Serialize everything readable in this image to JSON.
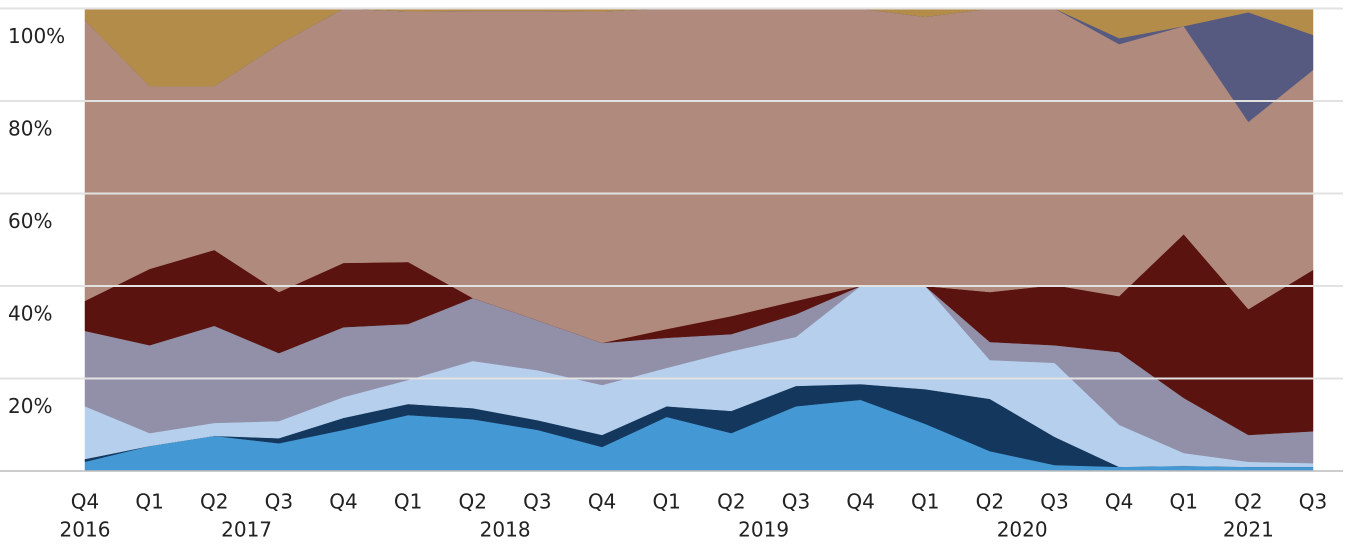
{
  "chart_data": {
    "type": "stacked_area",
    "categories": [
      "Q4",
      "Q1",
      "Q2",
      "Q3",
      "Q4",
      "Q1",
      "Q2",
      "Q3",
      "Q4",
      "Q1",
      "Q2",
      "Q3",
      "Q4",
      "Q1",
      "Q2",
      "Q3",
      "Q4",
      "Q1",
      "Q2",
      "Q3"
    ],
    "years": [
      "2016",
      "2017",
      "2017",
      "2017",
      "2017",
      "2018",
      "2018",
      "2018",
      "2018",
      "2019",
      "2019",
      "2019",
      "2019",
      "2020",
      "2020",
      "2020",
      "2020",
      "2021",
      "2021",
      "2021"
    ],
    "ylim": [
      0,
      100
    ],
    "yticks": [
      {
        "value": 20,
        "label": "20%"
      },
      {
        "value": 40,
        "label": "40%"
      },
      {
        "value": 60,
        "label": "60%"
      },
      {
        "value": 80,
        "label": "80%"
      },
      {
        "value": 100,
        "label": "100%"
      }
    ],
    "grid": true,
    "series": [
      {
        "color": "#4499d4",
        "values": [
          2,
          5.4,
          7.6,
          6,
          8.9,
          12.1,
          11.2,
          8.9,
          5.2,
          11.7,
          8.2,
          14,
          15.4,
          10.2,
          4.3,
          1.3,
          0.9,
          1.1,
          0.9,
          0.9
        ]
      },
      {
        "color": "#14375e",
        "values": [
          0.6,
          0,
          0,
          1.1,
          2.6,
          2.4,
          2.4,
          2.1,
          2.6,
          2.3,
          4.8,
          4.4,
          3.4,
          7.5,
          11.3,
          6.1,
          0,
          0,
          0,
          0
        ]
      },
      {
        "color": "#b5cfec",
        "values": [
          11.4,
          2.8,
          2.8,
          3.7,
          4.5,
          5.2,
          10.2,
          10.8,
          10.8,
          8.3,
          12.9,
          10.6,
          21.2,
          22.3,
          8.4,
          16,
          9.1,
          2.8,
          1.1,
          0.8
        ]
      },
      {
        "color": "#9190a8",
        "values": [
          16.3,
          19,
          21,
          14.7,
          15.1,
          12.1,
          13.6,
          10.8,
          9.1,
          6.5,
          3.7,
          4.9,
          0,
          0,
          3.9,
          3.8,
          15.7,
          11.9,
          5.8,
          6.9
        ]
      },
      {
        "color": "#5a130e",
        "values": [
          6.5,
          16.5,
          16.4,
          13.2,
          13.9,
          13.4,
          0,
          0,
          0,
          1.9,
          3.9,
          2.9,
          0,
          0,
          10.8,
          13,
          12.1,
          35.4,
          27.2,
          34.9
        ]
      },
      {
        "color": "#b08a7c",
        "values": [
          60.7,
          39.5,
          35.4,
          53.6,
          55,
          54.2,
          62.1,
          66.9,
          71.7,
          69.3,
          66.5,
          63.2,
          60,
          58.2,
          61.3,
          59.8,
          54.5,
          45,
          40.5,
          43.2
        ]
      },
      {
        "color": "#575a80",
        "values": [
          0,
          0,
          0,
          0,
          0,
          0,
          0,
          0,
          0,
          0,
          0,
          0,
          0,
          0,
          0,
          0,
          1.3,
          0,
          23.7,
          7.6
        ]
      },
      {
        "color": "#b48c4a",
        "values": [
          2.5,
          16.8,
          16.8,
          7.7,
          0,
          0.6,
          0.5,
          0.5,
          0.6,
          0,
          0,
          0,
          0,
          1.8,
          0,
          0,
          6.4,
          3.8,
          0.8,
          5.7
        ]
      }
    ]
  }
}
